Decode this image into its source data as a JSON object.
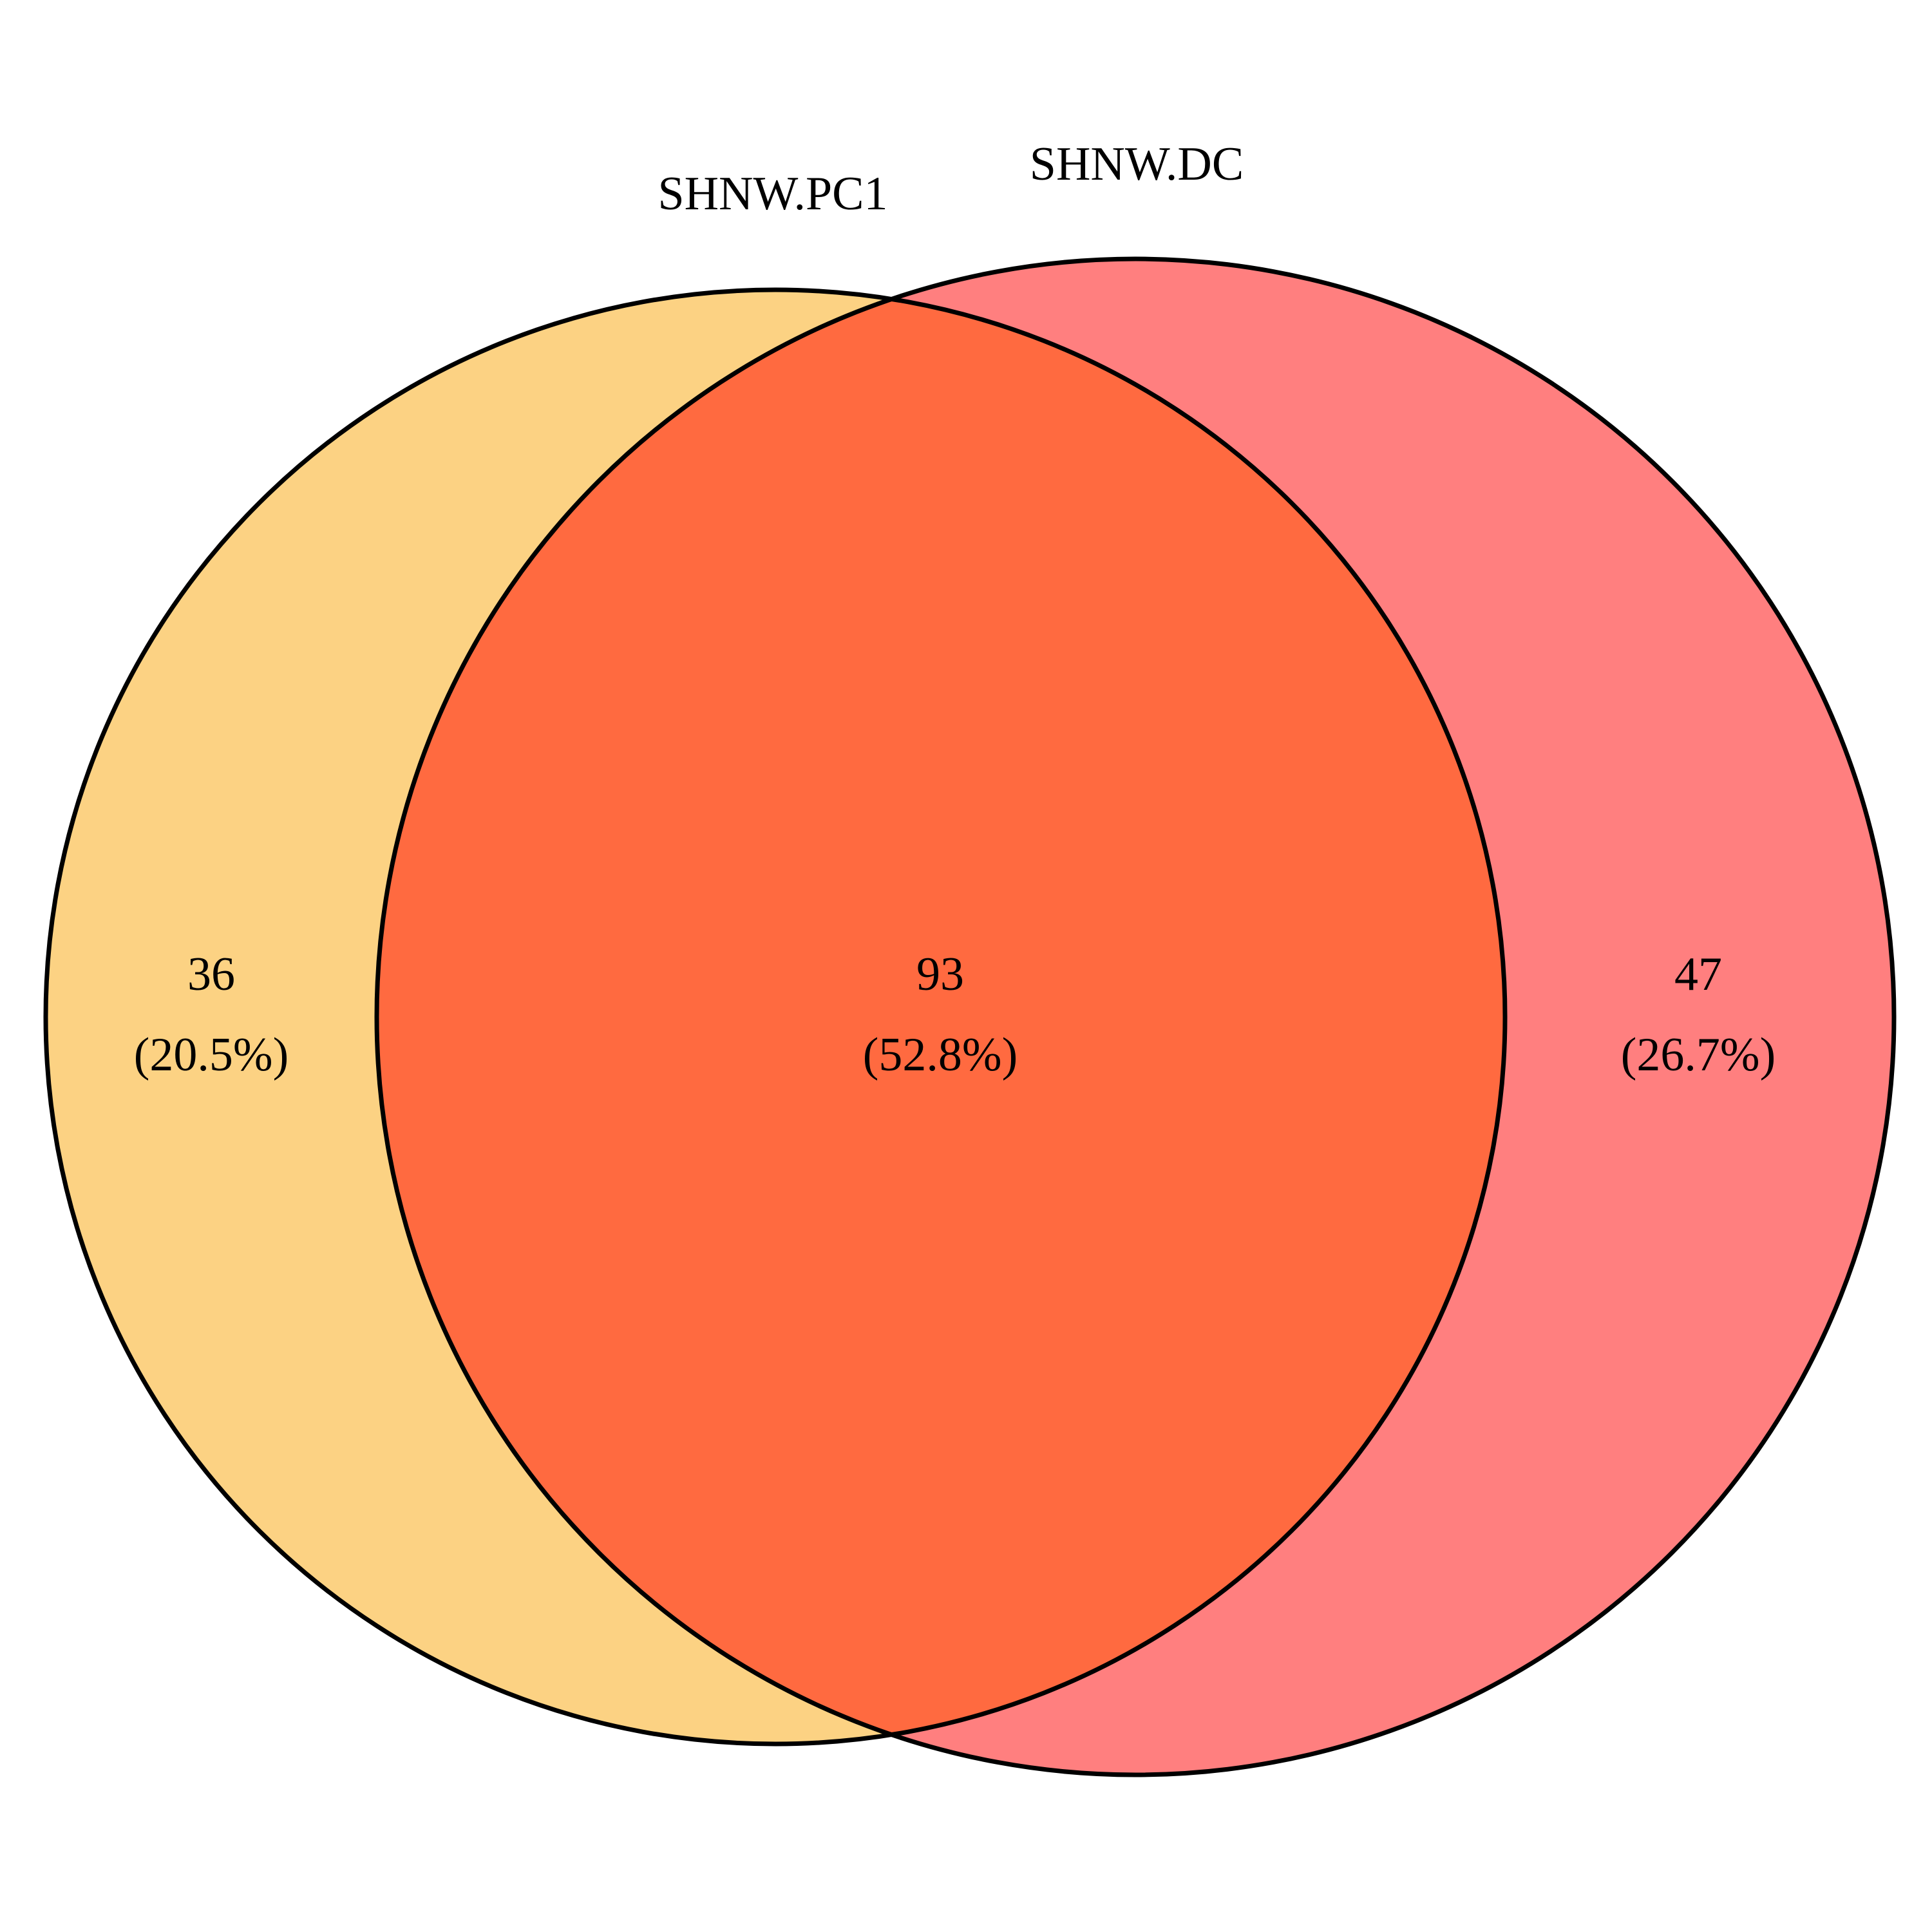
{
  "diagram": {
    "type": "venn",
    "sets": [
      {
        "name": "SHNW.PC1",
        "fill_color": "#FCD283"
      },
      {
        "name": "SHNW.DC",
        "fill_color": "#FF7F7F"
      }
    ],
    "overlap_fill_color": "#FF6A40",
    "outline_color": "#000000",
    "regions": [
      {
        "id": "pc1-only",
        "count": "36",
        "percent": "(20.5%)"
      },
      {
        "id": "both",
        "count": "93",
        "percent": "(52.8%)"
      },
      {
        "id": "dc-only",
        "count": "47",
        "percent": "(26.7%)"
      }
    ]
  }
}
